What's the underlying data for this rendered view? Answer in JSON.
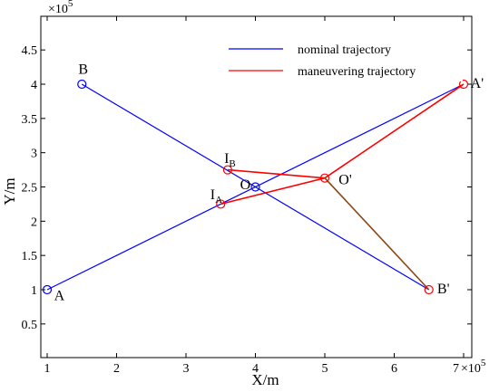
{
  "chart_data": {
    "type": "line",
    "xlabel": "X/m",
    "ylabel": "Y/m",
    "xlim": [
      1,
      7
    ],
    "ylim": [
      0.5,
      4.5
    ],
    "x_exponent": "×10",
    "x_exponent_power": "5",
    "y_exponent": "×10",
    "y_exponent_power": "5",
    "xticks": [
      {
        "value": 1,
        "label": "1"
      },
      {
        "value": 2,
        "label": "2"
      },
      {
        "value": 3,
        "label": "3"
      },
      {
        "value": 4,
        "label": "4"
      },
      {
        "value": 5,
        "label": "5"
      },
      {
        "value": 6,
        "label": "6"
      },
      {
        "value": 7,
        "label": "7"
      }
    ],
    "yticks": [
      {
        "value": 0.5,
        "label": "0.5"
      },
      {
        "value": 1,
        "label": "1"
      },
      {
        "value": 1.5,
        "label": "1.5"
      },
      {
        "value": 2,
        "label": "2"
      },
      {
        "value": 2.5,
        "label": "2.5"
      },
      {
        "value": 3,
        "label": "3"
      },
      {
        "value": 3.5,
        "label": "3.5"
      },
      {
        "value": 4,
        "label": "4"
      },
      {
        "value": 4.5,
        "label": "4.5"
      }
    ],
    "legend_position": "top-right",
    "series": [
      {
        "name": "nominal trajectory",
        "color": "#0000ff",
        "segments": [
          [
            [
              1,
              1
            ],
            [
              7,
              4
            ]
          ],
          [
            [
              1.5,
              4
            ],
            [
              6.5,
              1
            ]
          ]
        ]
      },
      {
        "name": "maneuvering trajectory",
        "color": "#ff0000",
        "segments": [
          [
            [
              3.5,
              2.25
            ],
            [
              5,
              2.63
            ],
            [
              7,
              4
            ]
          ],
          [
            [
              3.6,
              2.75
            ],
            [
              5,
              2.63
            ]
          ]
        ]
      }
    ],
    "extra_segments": [
      {
        "color": "#8b4513",
        "points": [
          [
            5,
            2.63
          ],
          [
            6.5,
            1
          ]
        ]
      }
    ],
    "markers": [
      {
        "x": 1,
        "y": 1,
        "color": "#0000ff"
      },
      {
        "x": 1.5,
        "y": 4,
        "color": "#0000ff"
      },
      {
        "x": 4,
        "y": 2.5,
        "color": "#0000ff"
      },
      {
        "x": 3.5,
        "y": 2.25,
        "color": "#ff0000"
      },
      {
        "x": 3.6,
        "y": 2.75,
        "color": "#ff0000"
      },
      {
        "x": 5,
        "y": 2.63,
        "color": "#ff0000"
      },
      {
        "x": 7,
        "y": 4,
        "color": "#ff0000"
      },
      {
        "x": 6.5,
        "y": 1,
        "color": "#ff0000"
      }
    ],
    "annotations": [
      {
        "text": "A",
        "sub": "",
        "x": 1.1,
        "y": 0.85
      },
      {
        "text": "B",
        "sub": "",
        "x": 1.45,
        "y": 4.15
      },
      {
        "text": "O",
        "sub": "",
        "x": 3.78,
        "y": 2.47
      },
      {
        "text": "I",
        "sub": "A",
        "x": 3.35,
        "y": 2.32
      },
      {
        "text": "I",
        "sub": "B",
        "x": 3.55,
        "y": 2.85
      },
      {
        "text": "O'",
        "sub": "",
        "x": 5.2,
        "y": 2.54
      },
      {
        "text": "A'",
        "sub": "",
        "x": 7.1,
        "y": 3.95
      },
      {
        "text": "B'",
        "sub": "",
        "x": 6.62,
        "y": 0.95
      }
    ]
  }
}
